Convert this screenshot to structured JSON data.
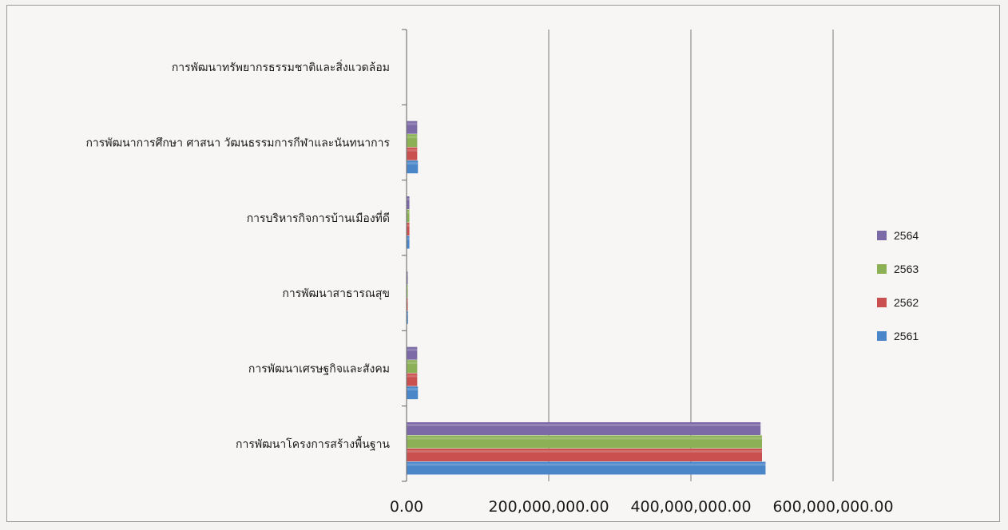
{
  "chart_data": {
    "type": "bar",
    "orientation": "horizontal",
    "title": "",
    "xlabel": "",
    "ylabel": "",
    "xlim": [
      0,
      600000000
    ],
    "x_ticks": [
      0,
      200000000,
      400000000,
      600000000
    ],
    "x_tick_labels": [
      "0.00",
      "200,000,000.00",
      "400,000,000.00",
      "600,000,000.00"
    ],
    "grid": "vertical",
    "legend_position": "right",
    "categories": [
      "การพัฒนาโครงการสร้างพื้นฐาน",
      "การพัฒนาเศรษฐกิจและสังคม",
      "การพัฒนาสาธารณสุข",
      "การบริหารกิจการบ้านเมืองที่ดี",
      "การพัฒนาการศึกษา ศาสนา วัฒนธรรมการกีฬาและนันทนาการ",
      "การพัฒนาทรัพยากรธรรมชาติและสิ่งแวดล้อม"
    ],
    "series": [
      {
        "name": "2561",
        "color": "#4a86c8",
        "values": [
          505000000,
          16000000,
          2000000,
          4000000,
          16000000,
          0
        ]
      },
      {
        "name": "2562",
        "color": "#c9504f",
        "values": [
          500000000,
          15000000,
          1500000,
          4000000,
          15000000,
          0
        ]
      },
      {
        "name": "2563",
        "color": "#8bb055",
        "values": [
          500000000,
          15000000,
          1500000,
          4000000,
          15000000,
          0
        ]
      },
      {
        "name": "2564",
        "color": "#7b6aa6",
        "values": [
          498000000,
          15000000,
          1500000,
          4000000,
          15000000,
          0
        ]
      }
    ],
    "legend_order": [
      "2564",
      "2563",
      "2562",
      "2561"
    ]
  }
}
